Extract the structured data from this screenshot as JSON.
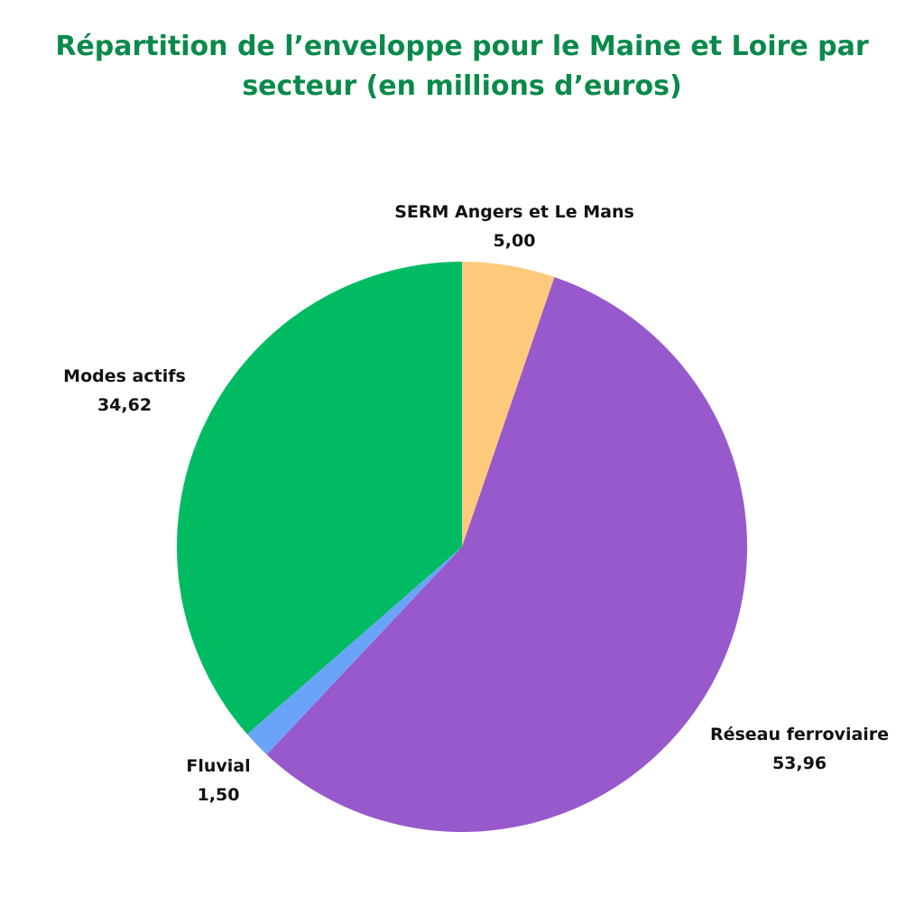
{
  "title": {
    "line1": "Répartition de l’enveloppe pour le Maine et Loire par",
    "line2": "secteur (en millions d’euros)"
  },
  "chart_data": {
    "type": "pie",
    "title": "Répartition de l’enveloppe pour le Maine et Loire par secteur (en millions d’euros)",
    "slices": [
      {
        "label": "SERM Angers et Le Mans",
        "value": 5.0,
        "display": "5,00",
        "color": "#fdca7c"
      },
      {
        "label": "Réseau ferroviaire",
        "value": 53.96,
        "display": "53,96",
        "color": "#9859cc"
      },
      {
        "label": "Fluvial",
        "value": 1.5,
        "display": "1,50",
        "color": "#6aa4f9"
      },
      {
        "label": "Modes actifs",
        "value": 34.62,
        "display": "34,62",
        "color": "#00bb62"
      }
    ]
  }
}
